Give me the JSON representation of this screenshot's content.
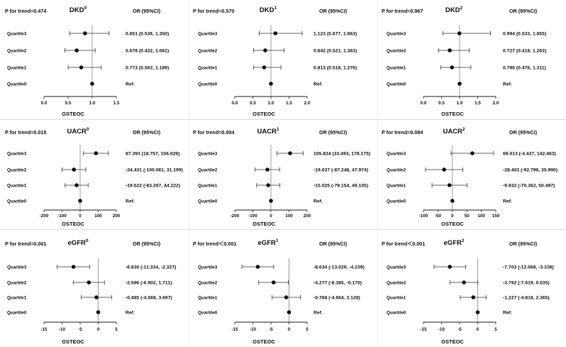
{
  "figure": {
    "col_header": "OR (95%CI)",
    "x_axis_label": "OSTEOC",
    "row_labels": [
      "Quartile3",
      "Quartile2",
      "Quartile1",
      "Quartile0"
    ]
  },
  "chart_data": [
    {
      "type": "forest",
      "outcome": "DKD",
      "model": "0",
      "trend_label": "P for trend=0.474",
      "xlabel": "OSTEOC",
      "xlim": [
        0.0,
        1.5
      ],
      "ticks": [
        0.0,
        0.5,
        1.0,
        1.5
      ],
      "tick_labels": [
        "0.0",
        "0.5",
        "1.0",
        "1.5"
      ],
      "ref_line": 1,
      "categories": [
        "Quartile3",
        "Quartile2",
        "Quartile1",
        "Quartile0"
      ],
      "estimates": [
        0.851,
        0.678,
        0.773,
        1.0
      ],
      "lower": [
        0.536,
        0.432,
        0.502,
        1.0
      ],
      "upper": [
        1.35,
        1.062,
        1.189,
        1.0
      ],
      "or_texts": [
        "0.851 (0.536, 1.350)",
        "0.678 (0.432, 1.062)",
        "0.773 (0.502, 1.189)",
        "Ref."
      ]
    },
    {
      "type": "forest",
      "outcome": "DKD",
      "model": "1",
      "trend_label": "P for trend=0.570",
      "xlabel": "OSTEOC",
      "xlim": [
        0.0,
        2.0
      ],
      "ticks": [
        0.0,
        0.5,
        1.0,
        1.5,
        2.0
      ],
      "tick_labels": [
        "0.0",
        "0.5",
        "1.0",
        "1.5",
        "2.0"
      ],
      "ref_line": 1,
      "categories": [
        "Quartile3",
        "Quartile2",
        "Quartile1",
        "Quartile0"
      ],
      "estimates": [
        1.123,
        0.842,
        0.813,
        1.0
      ],
      "lower": [
        0.677,
        0.521,
        0.518,
        1.0
      ],
      "upper": [
        1.863,
        1.363,
        1.276,
        1.0
      ],
      "or_texts": [
        "1.123 (0.677, 1.863)",
        "0.842 (0.521, 1.363)",
        "0.813 (0.518, 1.276)",
        "Ref."
      ]
    },
    {
      "type": "forest",
      "outcome": "DKD",
      "model": "2",
      "trend_label": "P for trend=0.967",
      "xlabel": "OSTEOC",
      "xlim": [
        0.0,
        2.0
      ],
      "ticks": [
        0.0,
        0.5,
        1.0,
        1.5,
        2.0
      ],
      "tick_labels": [
        "0.0",
        "0.5",
        "1.0",
        "1.5",
        "2.0"
      ],
      "ref_line": 1,
      "categories": [
        "Quartile3",
        "Quartile2",
        "Quartile1",
        "Quartile0"
      ],
      "estimates": [
        0.994,
        0.727,
        0.79,
        1.0
      ],
      "lower": [
        0.533,
        0.418,
        0.476,
        1.0
      ],
      "upper": [
        1.855,
        1.263,
        1.311,
        1.0
      ],
      "or_texts": [
        "0.994 (0.533, 1.855)",
        "0.727 (0.418, 1.263)",
        "0.790 (0.476, 1.311)",
        "Ref."
      ]
    },
    {
      "type": "forest",
      "outcome": "UACR",
      "model": "0",
      "trend_label": "P for trend=0.015",
      "xlabel": "OSTEOC",
      "xlim": [
        -200,
        200
      ],
      "ticks": [
        -200,
        -100,
        0,
        100,
        200
      ],
      "tick_labels": [
        "-200",
        "-100",
        "0",
        "100",
        "200"
      ],
      "ref_line": 0,
      "categories": [
        "Quartile3",
        "Quartile2",
        "Quartile1",
        "Quartile0"
      ],
      "estimates": [
        87.393,
        -34.431,
        -19.522,
        0
      ],
      "lower": [
        18.757,
        -100.061,
        -83.267,
        0
      ],
      "upper": [
        156.029,
        31.199,
        44.222,
        0
      ],
      "or_texts": [
        "87.393 (18.757, 156.029)",
        "-34.431 (-100.061, 31.199)",
        "-19.522 (-83.267, 44.222)",
        "Ref."
      ]
    },
    {
      "type": "forest",
      "outcome": "UACR",
      "model": "1",
      "trend_label": "P for trend=0.004",
      "xlabel": "OSTEOC",
      "xlim": [
        -200,
        200
      ],
      "ticks": [
        -200,
        -100,
        0,
        100,
        200
      ],
      "tick_labels": [
        "-200",
        "-100",
        "0",
        "100",
        "200"
      ],
      "ref_line": 0,
      "categories": [
        "Quartile3",
        "Quartile2",
        "Quartile1",
        "Quartile0"
      ],
      "estimates": [
        105.834,
        -19.637,
        -15.025,
        0
      ],
      "lower": [
        33.493,
        -87.248,
        -79.154,
        0
      ],
      "upper": [
        178.175,
        47.974,
        49.105,
        0
      ],
      "or_texts": [
        "105.834 (33.493, 178.175)",
        "-19.637 (-87.248, 47.974)",
        "-15.025 (-79.154, 49.105)",
        "Ref."
      ]
    },
    {
      "type": "forest",
      "outcome": "UACR",
      "model": "2",
      "trend_label": "P for trend=0.084",
      "xlabel": "OSTEOC",
      "xlim": [
        -100,
        150
      ],
      "ticks": [
        -100,
        -50,
        0,
        50,
        100,
        150
      ],
      "tick_labels": [
        "-100",
        "-50",
        "0",
        "50",
        "100",
        "150"
      ],
      "ref_line": 0,
      "categories": [
        "Quartile3",
        "Quartile2",
        "Quartile1",
        "Quartile0"
      ],
      "estimates": [
        69.013,
        -28.403,
        -9.932,
        0
      ],
      "lower": [
        -4.437,
        -92.796,
        -70.362,
        0
      ],
      "upper": [
        142.463,
        35.99,
        50.497,
        0
      ],
      "or_texts": [
        "69.013 (-4.437, 142.463)",
        "-28.403 (-92.796, 35.990)",
        "-9.932 (-70.362, 50.497)",
        "Ref."
      ]
    },
    {
      "type": "forest",
      "outcome": "eGFR",
      "model": "0",
      "trend_label": "P for trend=0.001",
      "xlabel": "OSTEOC",
      "xlim": [
        -15,
        5
      ],
      "ticks": [
        -15,
        -10,
        -5,
        0,
        5
      ],
      "tick_labels": [
        "-15",
        "-10",
        "-5",
        "0",
        "5"
      ],
      "ref_line": 0,
      "categories": [
        "Quartile3",
        "Quartile2",
        "Quartile1",
        "Quartile0"
      ],
      "estimates": [
        -6.83,
        -2.596,
        -0.485,
        0
      ],
      "lower": [
        -11.334,
        -6.902,
        -4.668,
        0
      ],
      "upper": [
        -2.327,
        1.711,
        3.697,
        0
      ],
      "or_texts": [
        "-6.830 (-11.334, -2.327)",
        "-2.596 (-6.902, 1.711)",
        "-0.485 (-4.668, 3.697)",
        "Ref."
      ]
    },
    {
      "type": "forest",
      "outcome": "eGFR",
      "model": "1",
      "trend_label": "P for trend＜0.001",
      "xlabel": "OSTEOC",
      "xlim": [
        -15,
        5
      ],
      "ticks": [
        -15,
        -10,
        -5,
        0,
        5
      ],
      "tick_labels": [
        "-15",
        "-10",
        "-5",
        "0",
        "5"
      ],
      "ref_line": 0,
      "categories": [
        "Quartile3",
        "Quartile2",
        "Quartile1",
        "Quartile0"
      ],
      "estimates": [
        -8.634,
        -4.277,
        -0.768,
        0
      ],
      "lower": [
        -13.029,
        -8.385,
        -4.664,
        0
      ],
      "upper": [
        -4.239,
        -0.17,
        3.128,
        0
      ],
      "or_texts": [
        "-8.634 (-13.029, -4.239)",
        "-4.277 (-8.385, -0.170)",
        "-0.768 (-4.664, 3.128)",
        "Ref."
      ]
    },
    {
      "type": "forest",
      "outcome": "eGFR",
      "model": "2",
      "trend_label": "P for trend＜0.001",
      "xlabel": "OSTEOC",
      "xlim": [
        -15,
        5
      ],
      "ticks": [
        -15,
        -10,
        -5,
        0,
        5
      ],
      "tick_labels": [
        "-15",
        "-10",
        "-5",
        "0",
        "5"
      ],
      "ref_line": 0,
      "categories": [
        "Quartile3",
        "Quartile2",
        "Quartile1",
        "Quartile0"
      ],
      "estimates": [
        -7.703,
        -3.792,
        -1.227,
        0
      ],
      "lower": [
        -12.068,
        -7.619,
        -4.818,
        0
      ],
      "upper": [
        -3.338,
        0.035,
        2.365,
        0
      ],
      "or_texts": [
        "-7.703 (-12.068, -3.338)",
        "-3.792 (-7.619, 0.035)",
        "-1.227 (-4.818, 2.365)",
        "Ref."
      ]
    }
  ]
}
